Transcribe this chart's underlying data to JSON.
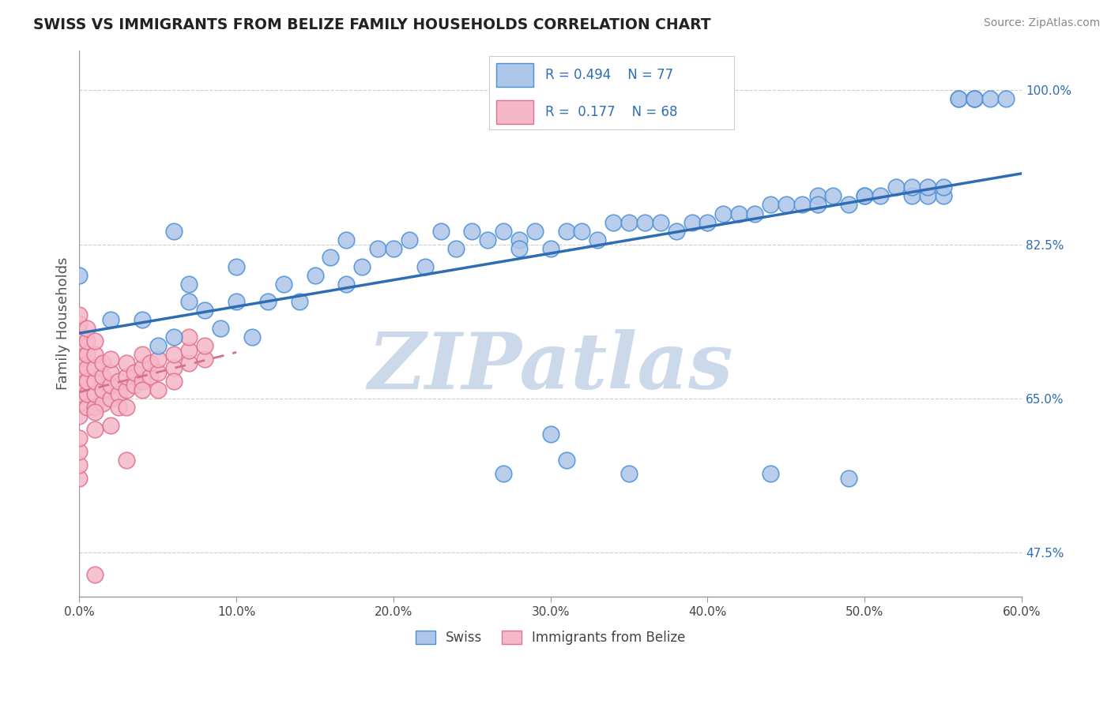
{
  "title": "SWISS VS IMMIGRANTS FROM BELIZE FAMILY HOUSEHOLDS CORRELATION CHART",
  "source": "Source: ZipAtlas.com",
  "ylabel": "Family Households",
  "xlim": [
    0.0,
    0.6
  ],
  "ylim": [
    0.425,
    1.045
  ],
  "yticks": [
    0.475,
    0.65,
    0.825,
    1.0
  ],
  "ytick_labels": [
    "47.5%",
    "65.0%",
    "82.5%",
    "100.0%"
  ],
  "xticks": [
    0.0,
    0.1,
    0.2,
    0.3,
    0.4,
    0.5,
    0.6
  ],
  "xtick_labels": [
    "0.0%",
    "10.0%",
    "20.0%",
    "30.0%",
    "40.0%",
    "50.0%",
    "60.0%"
  ],
  "legend_R_swiss": "0.494",
  "legend_N_swiss": "77",
  "legend_R_belize": "0.177",
  "legend_N_belize": "68",
  "swiss_color": "#aec6e8",
  "belize_color": "#f5b8c8",
  "swiss_edge_color": "#4a90d9",
  "belize_edge_color": "#e07090",
  "trend_swiss_color": "#2e6db4",
  "trend_belize_color": "#d47090",
  "tick_color": "#2e6db4",
  "watermark_color": "#ccd9ea",
  "grid_color": "#cccccc",
  "swiss_x": [
    0.02,
    0.04,
    0.05,
    0.06,
    0.06,
    0.07,
    0.07,
    0.08,
    0.09,
    0.1,
    0.1,
    0.11,
    0.12,
    0.13,
    0.14,
    0.15,
    0.16,
    0.17,
    0.17,
    0.18,
    0.19,
    0.2,
    0.21,
    0.22,
    0.23,
    0.24,
    0.25,
    0.26,
    0.27,
    0.28,
    0.28,
    0.29,
    0.3,
    0.31,
    0.32,
    0.33,
    0.34,
    0.35,
    0.36,
    0.37,
    0.38,
    0.39,
    0.4,
    0.41,
    0.42,
    0.43,
    0.44,
    0.45,
    0.46,
    0.47,
    0.47,
    0.48,
    0.49,
    0.5,
    0.5,
    0.51,
    0.52,
    0.53,
    0.53,
    0.54,
    0.54,
    0.55,
    0.55,
    0.56,
    0.56,
    0.57,
    0.57,
    0.57,
    0.58,
    0.59,
    0.0,
    0.27,
    0.3,
    0.31,
    0.35,
    0.44,
    0.49
  ],
  "swiss_y": [
    0.74,
    0.74,
    0.71,
    0.72,
    0.84,
    0.76,
    0.78,
    0.75,
    0.73,
    0.76,
    0.8,
    0.72,
    0.76,
    0.78,
    0.76,
    0.79,
    0.81,
    0.78,
    0.83,
    0.8,
    0.82,
    0.82,
    0.83,
    0.8,
    0.84,
    0.82,
    0.84,
    0.83,
    0.84,
    0.83,
    0.82,
    0.84,
    0.82,
    0.84,
    0.84,
    0.83,
    0.85,
    0.85,
    0.85,
    0.85,
    0.84,
    0.85,
    0.85,
    0.86,
    0.86,
    0.86,
    0.87,
    0.87,
    0.87,
    0.88,
    0.87,
    0.88,
    0.87,
    0.88,
    0.88,
    0.88,
    0.89,
    0.88,
    0.89,
    0.88,
    0.89,
    0.88,
    0.89,
    0.99,
    0.99,
    0.99,
    0.99,
    0.99,
    0.99,
    0.99,
    0.79,
    0.565,
    0.61,
    0.58,
    0.565,
    0.565,
    0.56
  ],
  "belize_x": [
    0.0,
    0.0,
    0.0,
    0.0,
    0.0,
    0.0,
    0.0,
    0.0,
    0.0,
    0.0,
    0.0,
    0.0,
    0.005,
    0.005,
    0.005,
    0.005,
    0.005,
    0.005,
    0.005,
    0.01,
    0.01,
    0.01,
    0.01,
    0.01,
    0.01,
    0.015,
    0.015,
    0.015,
    0.015,
    0.02,
    0.02,
    0.02,
    0.02,
    0.025,
    0.025,
    0.03,
    0.03,
    0.03,
    0.035,
    0.035,
    0.04,
    0.04,
    0.04,
    0.045,
    0.045,
    0.05,
    0.05,
    0.06,
    0.06,
    0.07,
    0.07,
    0.07,
    0.08,
    0.08,
    0.0,
    0.0,
    0.0,
    0.0,
    0.01,
    0.01,
    0.02,
    0.025,
    0.03,
    0.03,
    0.04,
    0.05,
    0.06,
    0.01
  ],
  "belize_y": [
    0.63,
    0.645,
    0.655,
    0.665,
    0.675,
    0.685,
    0.695,
    0.705,
    0.715,
    0.725,
    0.735,
    0.745,
    0.64,
    0.655,
    0.67,
    0.685,
    0.7,
    0.715,
    0.73,
    0.64,
    0.655,
    0.67,
    0.685,
    0.7,
    0.715,
    0.645,
    0.66,
    0.675,
    0.69,
    0.65,
    0.665,
    0.68,
    0.695,
    0.655,
    0.67,
    0.66,
    0.675,
    0.69,
    0.665,
    0.68,
    0.67,
    0.685,
    0.7,
    0.675,
    0.69,
    0.68,
    0.695,
    0.685,
    0.7,
    0.69,
    0.705,
    0.72,
    0.695,
    0.71,
    0.56,
    0.575,
    0.59,
    0.605,
    0.615,
    0.635,
    0.62,
    0.64,
    0.64,
    0.58,
    0.66,
    0.66,
    0.67,
    0.45
  ]
}
